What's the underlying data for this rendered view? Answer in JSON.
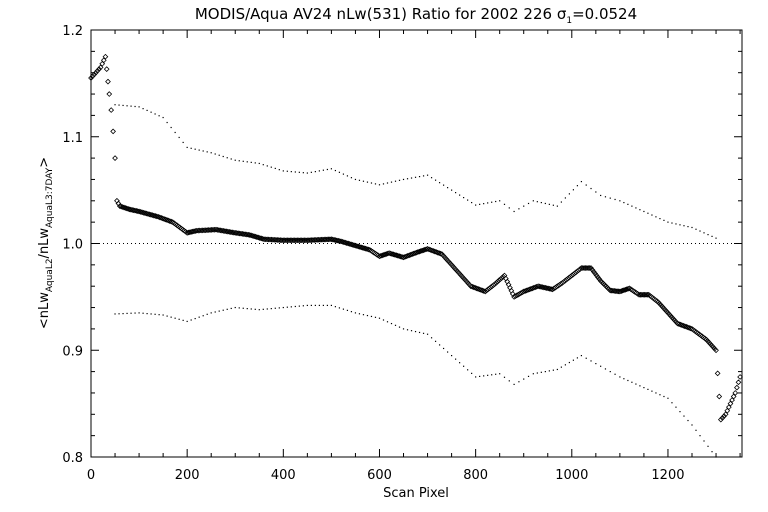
{
  "chart_data": {
    "type": "scatter",
    "title": {
      "prefix": "MODIS/Aqua AV24 nLw(531) Ratio for 2002 226 ",
      "sigma_symbol": "σ",
      "sigma_subscript": "1",
      "sigma_value": "=0.0524"
    },
    "xlabel": "Scan Pixel",
    "ylabel_parts": {
      "open": "<nLw",
      "sub1": "AquaL2",
      "mid": "/nLw",
      "sub2": "AquaL3:7DAY",
      "close": ">"
    },
    "xlim": [
      0,
      1354
    ],
    "ylim": [
      0.8,
      1.2
    ],
    "x_ticks": [
      0,
      200,
      400,
      600,
      800,
      1000,
      1200
    ],
    "x_tick_labels": [
      "0",
      "200",
      "400",
      "600",
      "800",
      "1000",
      "1200"
    ],
    "y_ticks": [
      0.8,
      0.9,
      1.0,
      1.1,
      1.2
    ],
    "y_tick_labels": [
      "0.8",
      "0.9",
      "1.0",
      "1.1",
      "1.2"
    ],
    "reference_line": 1.0,
    "series": [
      {
        "style": "diamond",
        "points": [
          [
            0,
            1.155
          ],
          [
            10,
            1.16
          ],
          [
            20,
            1.165
          ],
          [
            30,
            1.175
          ],
          [
            38,
            1.14
          ],
          [
            42,
            1.125
          ],
          [
            46,
            1.105
          ],
          [
            50,
            1.08
          ],
          [
            54,
            1.04
          ],
          [
            60,
            1.035
          ],
          [
            80,
            1.032
          ],
          [
            100,
            1.03
          ],
          [
            140,
            1.025
          ],
          [
            170,
            1.02
          ],
          [
            200,
            1.01
          ],
          [
            220,
            1.012
          ],
          [
            260,
            1.013
          ],
          [
            300,
            1.01
          ],
          [
            330,
            1.008
          ],
          [
            360,
            1.004
          ],
          [
            400,
            1.003
          ],
          [
            450,
            1.003
          ],
          [
            500,
            1.004
          ],
          [
            520,
            1.002
          ],
          [
            550,
            0.998
          ],
          [
            580,
            0.994
          ],
          [
            600,
            0.988
          ],
          [
            620,
            0.991
          ],
          [
            650,
            0.987
          ],
          [
            680,
            0.992
          ],
          [
            700,
            0.995
          ],
          [
            730,
            0.99
          ],
          [
            760,
            0.975
          ],
          [
            790,
            0.96
          ],
          [
            820,
            0.955
          ],
          [
            840,
            0.962
          ],
          [
            860,
            0.97
          ],
          [
            880,
            0.95
          ],
          [
            900,
            0.955
          ],
          [
            930,
            0.96
          ],
          [
            960,
            0.957
          ],
          [
            980,
            0.963
          ],
          [
            1000,
            0.97
          ],
          [
            1020,
            0.977
          ],
          [
            1040,
            0.977
          ],
          [
            1060,
            0.965
          ],
          [
            1080,
            0.956
          ],
          [
            1100,
            0.955
          ],
          [
            1120,
            0.958
          ],
          [
            1140,
            0.952
          ],
          [
            1160,
            0.952
          ],
          [
            1180,
            0.945
          ],
          [
            1200,
            0.935
          ],
          [
            1220,
            0.925
          ],
          [
            1250,
            0.92
          ],
          [
            1280,
            0.91
          ],
          [
            1300,
            0.9
          ],
          [
            1310,
            0.835
          ],
          [
            1320,
            0.84
          ],
          [
            1330,
            0.85
          ],
          [
            1340,
            0.86
          ],
          [
            1350,
            0.875
          ]
        ]
      },
      {
        "style": "dot",
        "points": [
          [
            50,
            1.13
          ],
          [
            100,
            1.128
          ],
          [
            150,
            1.118
          ],
          [
            200,
            1.09
          ],
          [
            250,
            1.085
          ],
          [
            300,
            1.078
          ],
          [
            350,
            1.075
          ],
          [
            400,
            1.068
          ],
          [
            450,
            1.066
          ],
          [
            500,
            1.07
          ],
          [
            550,
            1.06
          ],
          [
            600,
            1.055
          ],
          [
            650,
            1.06
          ],
          [
            700,
            1.064
          ],
          [
            750,
            1.05
          ],
          [
            800,
            1.036
          ],
          [
            850,
            1.04
          ],
          [
            880,
            1.03
          ],
          [
            920,
            1.04
          ],
          [
            970,
            1.035
          ],
          [
            1020,
            1.058
          ],
          [
            1060,
            1.045
          ],
          [
            1100,
            1.04
          ],
          [
            1150,
            1.03
          ],
          [
            1200,
            1.02
          ],
          [
            1250,
            1.015
          ],
          [
            1300,
            1.005
          ]
        ]
      },
      {
        "style": "dot",
        "points": [
          [
            50,
            0.934
          ],
          [
            100,
            0.935
          ],
          [
            150,
            0.933
          ],
          [
            200,
            0.927
          ],
          [
            250,
            0.935
          ],
          [
            300,
            0.94
          ],
          [
            350,
            0.938
          ],
          [
            400,
            0.94
          ],
          [
            450,
            0.942
          ],
          [
            500,
            0.942
          ],
          [
            550,
            0.935
          ],
          [
            600,
            0.93
          ],
          [
            650,
            0.92
          ],
          [
            700,
            0.915
          ],
          [
            750,
            0.895
          ],
          [
            800,
            0.875
          ],
          [
            850,
            0.878
          ],
          [
            880,
            0.868
          ],
          [
            920,
            0.878
          ],
          [
            970,
            0.882
          ],
          [
            1020,
            0.895
          ],
          [
            1060,
            0.885
          ],
          [
            1100,
            0.875
          ],
          [
            1150,
            0.865
          ],
          [
            1200,
            0.855
          ],
          [
            1250,
            0.83
          ],
          [
            1300,
            0.8
          ]
        ]
      }
    ]
  }
}
